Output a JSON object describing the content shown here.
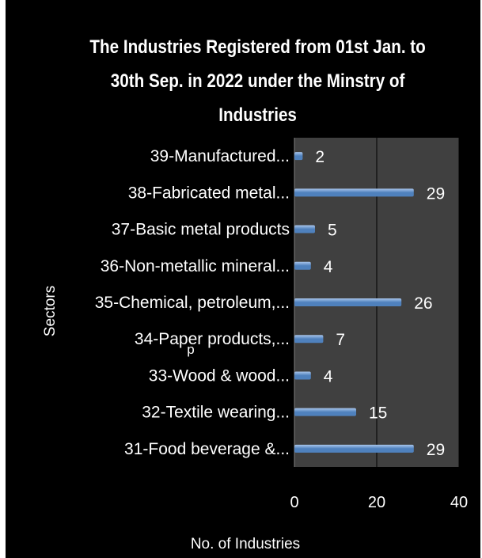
{
  "chart_data": {
    "type": "bar",
    "orientation": "horizontal",
    "title": "The Industries Registered from 01st Jan. to 30th Sep. in 2022 under the Minstry of Industries",
    "title_lines": [
      "The Industries Registered from 01st Jan. to",
      "30th Sep. in 2022 under the Minstry of",
      "Industries"
    ],
    "xlabel": "No. of Industries",
    "ylabel": "Sectors",
    "categories": [
      "31-Food beverage &...",
      "32-Textile wearing...",
      "33-Wood & wood...",
      "34-Paper products,...",
      "35-Chemical, petroleum,...",
      "36-Non-metallic mineral...",
      "37-Basic metal products",
      "38-Fabricated metal...",
      "39-Manufactured..."
    ],
    "values": [
      29,
      15,
      4,
      7,
      26,
      4,
      5,
      29,
      2
    ],
    "xlim": [
      0,
      40
    ],
    "xticks": [
      "0",
      "20",
      "40"
    ],
    "grid": true,
    "legend": "none",
    "stray_label": "p",
    "colors": {
      "bar": "#4f81bd",
      "bar_light": "#a9c6ec",
      "plot_background": "#404040",
      "background": "#000000",
      "text": "#ffffff"
    }
  }
}
